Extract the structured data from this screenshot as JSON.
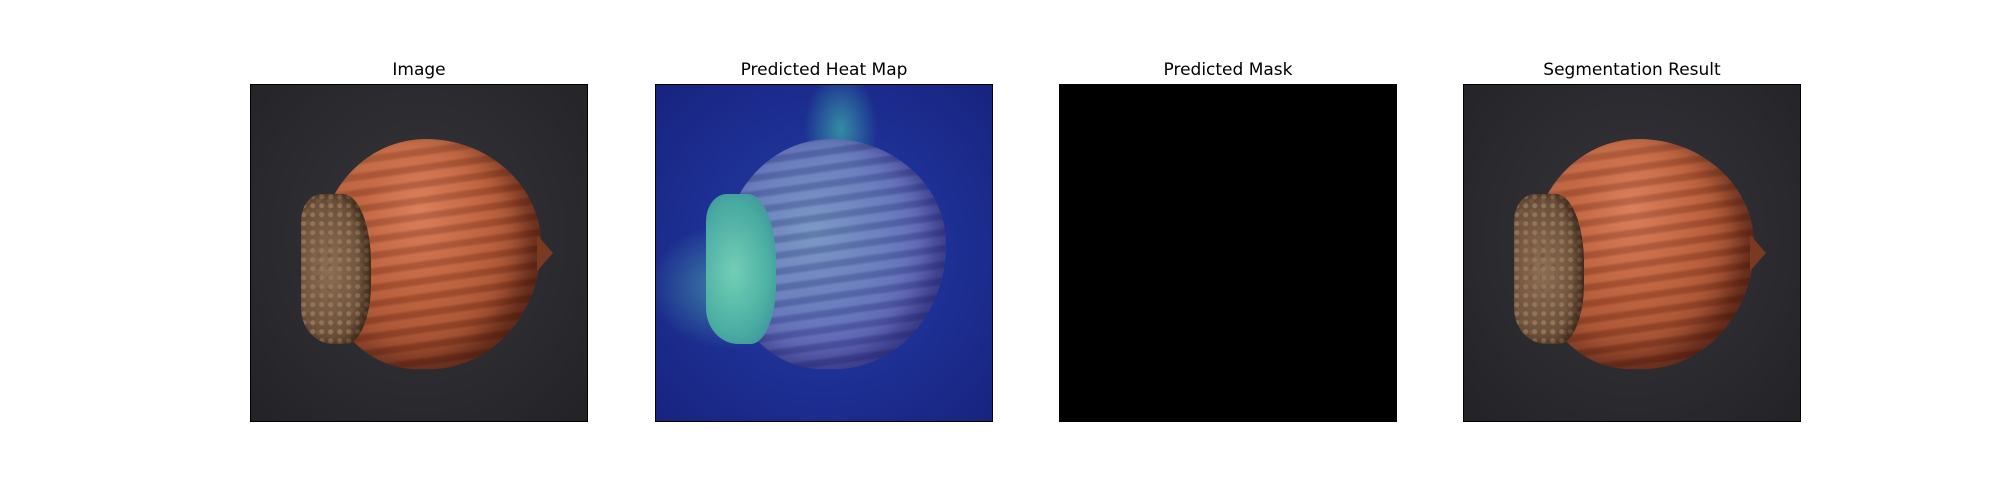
{
  "panels": [
    {
      "title": "Image"
    },
    {
      "title": "Predicted Heat Map"
    },
    {
      "title": "Predicted Mask"
    },
    {
      "title": "Segmentation Result"
    }
  ],
  "colors": {
    "background": "#ffffff",
    "mask": "#000000",
    "heatmap_base": "#1d2f93",
    "nut_shell": "#b65a36"
  }
}
